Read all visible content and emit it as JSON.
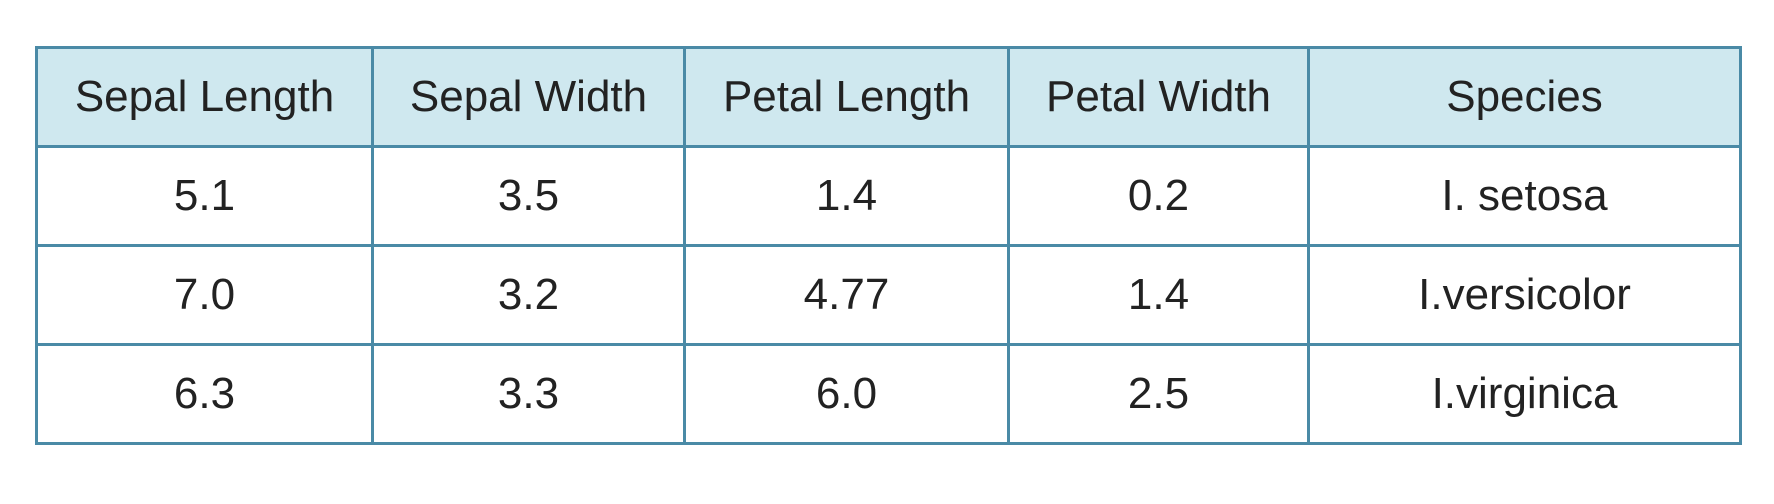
{
  "chart_data": {
    "type": "table",
    "columns": [
      "Sepal Length",
      "Sepal Width",
      "Petal Length",
      "Petal Width",
      "Species"
    ],
    "rows": [
      [
        "5.1",
        "3.5",
        "1.4",
        "0.2",
        "I. setosa"
      ],
      [
        "7.0",
        "3.2",
        "4.77",
        "1.4",
        "I.versicolor"
      ],
      [
        "6.3",
        "3.3",
        "6.0",
        "2.5",
        "I.virginica"
      ]
    ]
  },
  "colors": {
    "header_background": "#cfe8ef",
    "border": "#4a8aa6",
    "text": "#222222"
  }
}
